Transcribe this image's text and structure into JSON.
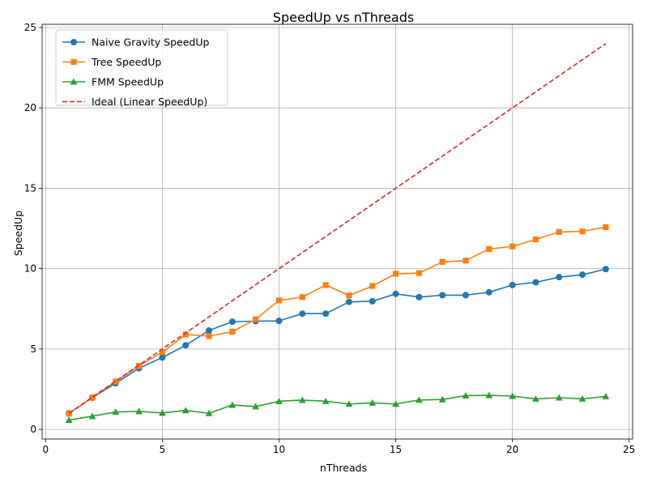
{
  "chart_data": {
    "type": "line",
    "title": "SpeedUp vs nThreads",
    "xlabel": "nThreads",
    "ylabel": "SpeedUp",
    "xlim": [
      -0.15,
      25.15
    ],
    "ylim": [
      -0.6,
      25.2
    ],
    "xticks": [
      0,
      5,
      10,
      15,
      20,
      25
    ],
    "yticks": [
      0,
      5,
      10,
      15,
      20,
      25
    ],
    "grid": true,
    "legend_position": "upper-left",
    "x": [
      1,
      2,
      3,
      4,
      5,
      6,
      7,
      8,
      9,
      10,
      11,
      12,
      13,
      14,
      15,
      16,
      17,
      18,
      19,
      20,
      21,
      22,
      23,
      24
    ],
    "series": [
      {
        "name": "Naive Gravity SpeedUp",
        "color": "#1f77b4",
        "marker": "circle",
        "linestyle": "solid",
        "values": [
          1.0,
          1.97,
          2.87,
          3.8,
          4.47,
          5.23,
          6.15,
          6.7,
          6.73,
          6.75,
          7.2,
          7.2,
          7.93,
          7.97,
          8.43,
          8.23,
          8.35,
          8.35,
          8.53,
          8.98,
          9.15,
          9.47,
          9.62,
          9.97
        ]
      },
      {
        "name": "Tree SpeedUp",
        "color": "#ff7f0e",
        "marker": "square",
        "linestyle": "solid",
        "values": [
          0.98,
          1.98,
          2.98,
          3.95,
          4.8,
          5.9,
          5.8,
          6.08,
          6.85,
          8.02,
          8.23,
          8.98,
          8.33,
          8.92,
          9.68,
          9.72,
          10.42,
          10.5,
          11.22,
          11.38,
          11.82,
          12.28,
          12.32,
          12.58
        ]
      },
      {
        "name": "FMM SpeedUp",
        "color": "#2ca02c",
        "marker": "triangle",
        "linestyle": "solid",
        "values": [
          0.58,
          0.82,
          1.08,
          1.12,
          1.02,
          1.18,
          1.0,
          1.52,
          1.42,
          1.75,
          1.82,
          1.75,
          1.58,
          1.65,
          1.58,
          1.83,
          1.86,
          2.1,
          2.12,
          2.07,
          1.9,
          1.97,
          1.9,
          2.05
        ]
      },
      {
        "name": "Ideal (Linear SpeedUp)",
        "color": "#d62728",
        "marker": "none",
        "linestyle": "dashed",
        "values": [
          1,
          2,
          3,
          4,
          5,
          6,
          7,
          8,
          9,
          10,
          11,
          12,
          13,
          14,
          15,
          16,
          17,
          18,
          19,
          20,
          21,
          22,
          23,
          24
        ]
      }
    ]
  }
}
